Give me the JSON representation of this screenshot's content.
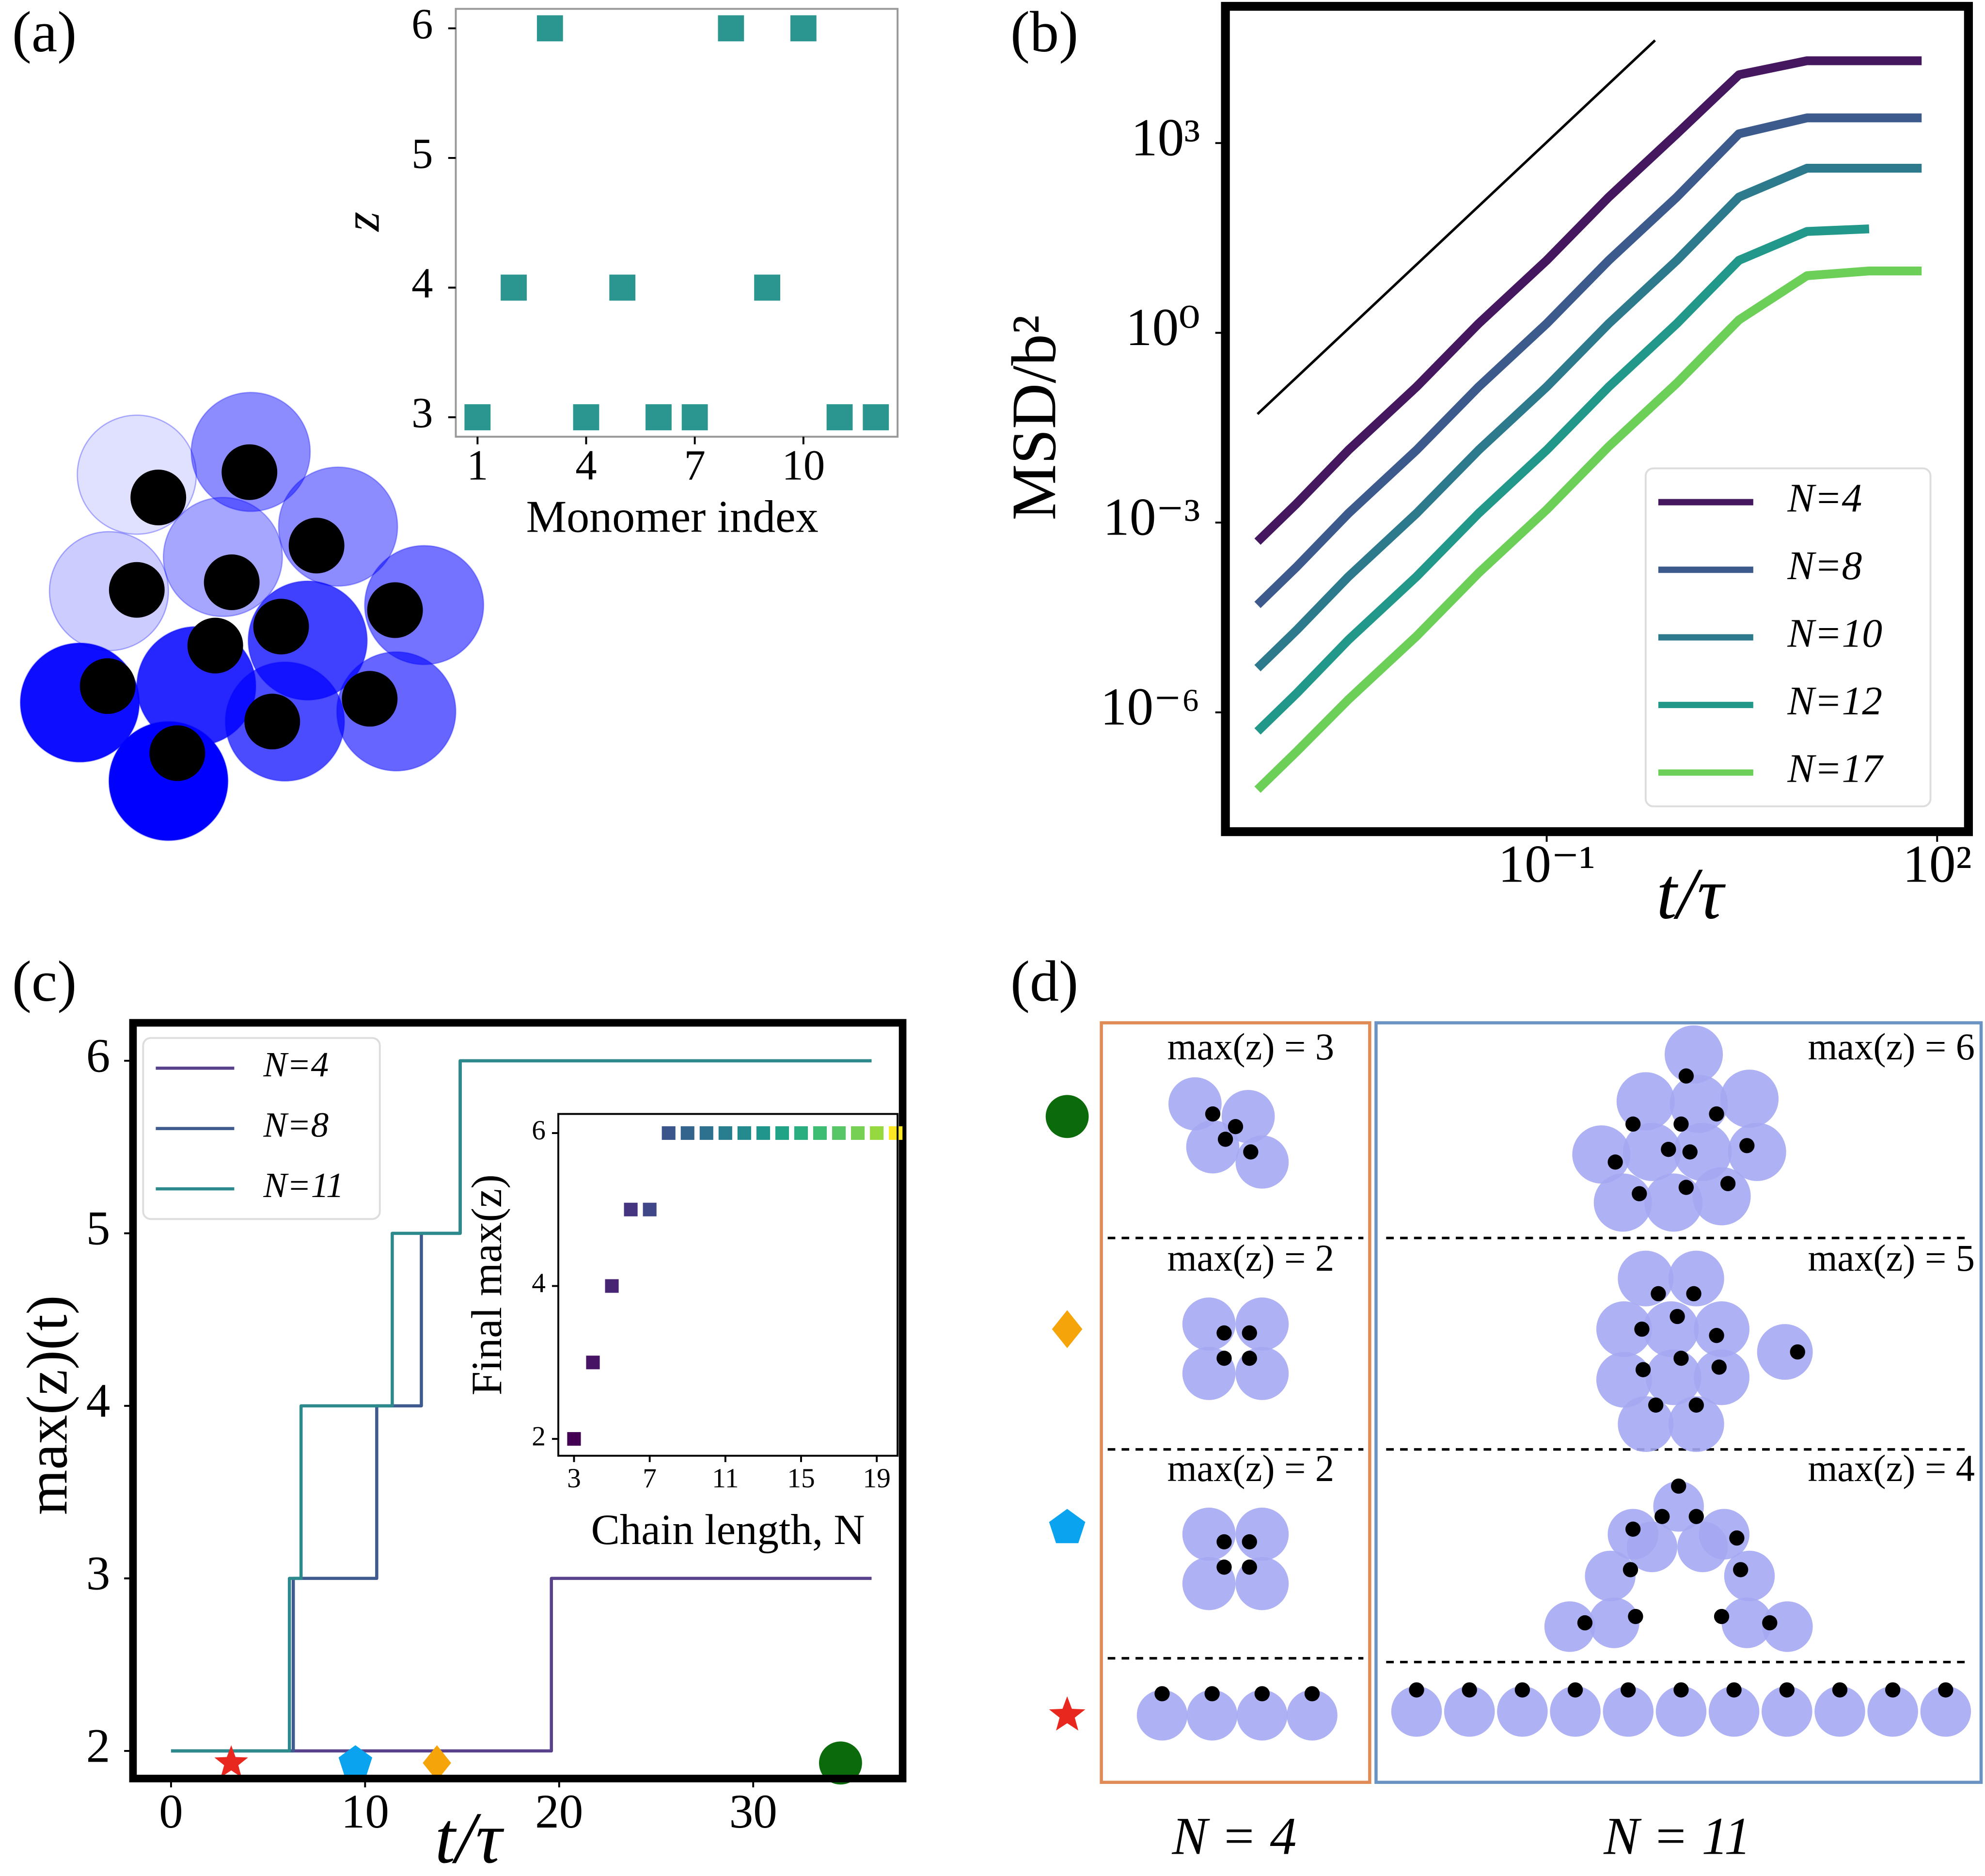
{
  "panel_labels": [
    "(a)",
    "(b)",
    "(c)",
    "(d)"
  ],
  "chart_data": [
    {
      "type": "scatter",
      "marker": "square",
      "xlabel": "Monomer index",
      "ylabel": "z",
      "color": "#2b958f",
      "x": [
        1,
        2,
        3,
        4,
        5,
        6,
        7,
        8,
        9,
        10,
        11,
        12
      ],
      "values": [
        3,
        4,
        6,
        3,
        4,
        3,
        3,
        6,
        4,
        6,
        3,
        3
      ],
      "xlim": [
        0.4,
        12.6
      ],
      "ylim": [
        2.85,
        6.15
      ],
      "xticks": [
        1,
        4,
        7,
        10
      ],
      "yticks": [
        3,
        4,
        5,
        6
      ]
    },
    {
      "type": "line",
      "xlabel": "t/τ",
      "ylabel": "MSD/b²",
      "log_x": true,
      "log_y": true,
      "legend": "lower right",
      "x": [
        0.0006,
        0.0012,
        0.003,
        0.01,
        0.03,
        0.1,
        0.3,
        1,
        3,
        10,
        30,
        76
      ],
      "series": [
        {
          "name": "N=4",
          "color": "#45175f",
          "values": [
            0.0005,
            0.002,
            0.014,
            0.14,
            1.4,
            14,
            140,
            1400,
            12000,
            20000,
            20000,
            20000
          ]
        },
        {
          "name": "N=8",
          "color": "#3c5a8c",
          "values": [
            5e-05,
            0.0002,
            0.0014,
            0.014,
            0.14,
            1.4,
            14,
            140,
            1400,
            2500,
            2500,
            2500
          ]
        },
        {
          "name": "N=10",
          "color": "#2c7a8c",
          "values": [
            5e-06,
            2e-05,
            0.00014,
            0.0014,
            0.014,
            0.14,
            1.4,
            14,
            140,
            400,
            400,
            400
          ]
        },
        {
          "name": "N=12",
          "color": "#22988a",
          "values": [
            5e-07,
            2e-06,
            1.4e-05,
            0.00014,
            0.0014,
            0.014,
            0.14,
            1.4,
            14,
            40,
            44,
            null
          ]
        },
        {
          "name": "N=17",
          "color": "#6ccf58",
          "values": [
            6e-08,
            2.4e-07,
            1.6e-06,
            1.6e-05,
            0.00016,
            0.0016,
            0.016,
            0.16,
            1.6,
            8,
            9.5,
            9.5
          ]
        }
      ],
      "reference_line": {
        "color": "#000000",
        "x": [
          0.0006,
          0.68
        ],
        "values": [
          0.052,
          42000
        ]
      },
      "xlim": [
        0.00034,
        174
      ],
      "ylim": [
        1.3e-08,
        145000
      ],
      "xticks": [
        {
          "value": 0.1,
          "label": "10⁻¹"
        },
        {
          "value": 100,
          "label": "10²"
        }
      ],
      "yticks": [
        {
          "value": 1e-06,
          "label": "10⁻⁶"
        },
        {
          "value": 0.001,
          "label": "10⁻³"
        },
        {
          "value": 1,
          "label": "10⁰"
        },
        {
          "value": 1000,
          "label": "10³"
        }
      ]
    },
    {
      "type": "line",
      "xlabel": "t/τ",
      "ylabel": "max(z)(t)",
      "legend": "upper left",
      "series": [
        {
          "name": "N=4",
          "color": "#58428c",
          "x": [
            0,
            19.6,
            19.6,
            36.1
          ],
          "values": [
            2,
            2,
            3,
            3
          ]
        },
        {
          "name": "N=8",
          "color": "#3e5a8e",
          "x": [
            0,
            6.3,
            6.3,
            10.6,
            10.6,
            12.9,
            12.9,
            14.9,
            14.9,
            36.1
          ],
          "values": [
            2,
            2,
            3,
            3,
            4,
            4,
            5,
            5,
            6,
            6
          ]
        },
        {
          "name": "N=11",
          "color": "#2c8a8c",
          "x": [
            0,
            6.1,
            6.1,
            6.7,
            6.7,
            11.4,
            11.4,
            14.9,
            14.9,
            36.1
          ],
          "values": [
            2,
            2,
            3,
            3,
            4,
            4,
            5,
            5,
            6,
            6
          ]
        }
      ],
      "markers": [
        {
          "shape": "star",
          "color": "#e8281e",
          "x": 3.1,
          "y": 1.93
        },
        {
          "shape": "pentagon",
          "color": "#0aa3f0",
          "x": 9.5,
          "y": 1.93
        },
        {
          "shape": "diamond",
          "color": "#f5a40a",
          "x": 13.7,
          "y": 1.93
        },
        {
          "shape": "circle",
          "color": "#0b6b0b",
          "x": 34.5,
          "y": 1.93
        }
      ],
      "xlim": [
        -1.96,
        37.7
      ],
      "ylim": [
        1.84,
        6.22
      ],
      "xticks": [
        0,
        10,
        20,
        30
      ],
      "yticks": [
        2,
        3,
        4,
        5,
        6
      ]
    },
    {
      "type": "scatter",
      "marker": "square",
      "xlabel": "Chain length, N",
      "ylabel": "Final max(z)",
      "x": [
        3,
        4,
        5,
        6,
        7,
        8,
        9,
        10,
        11,
        12,
        13,
        14,
        15,
        16,
        17,
        18,
        19,
        20
      ],
      "values": [
        2,
        3,
        4,
        5,
        5,
        6,
        6,
        6,
        6,
        6,
        6,
        6,
        6,
        6,
        6,
        6,
        6,
        6
      ],
      "colors": [
        "#440154",
        "#471365",
        "#482475",
        "#453581",
        "#3f4788",
        "#39558c",
        "#32648e",
        "#2d718e",
        "#287d8e",
        "#238a8d",
        "#1f968b",
        "#20a386",
        "#29af7f",
        "#3dbc74",
        "#56c667",
        "#75d054",
        "#95d840",
        "#fde725"
      ],
      "xlim": [
        2.17,
        20.1
      ],
      "ylim": [
        1.78,
        6.25
      ],
      "xticks": [
        3,
        7,
        11,
        15,
        19
      ],
      "yticks": [
        2,
        4,
        6
      ]
    }
  ],
  "panel_d": {
    "columns": [
      "N = 4",
      "N = 11"
    ],
    "rows": [
      [
        "max(z) = 3",
        "max(z) = 6"
      ],
      [
        "max(z) = 2",
        "max(z) = 5"
      ],
      [
        "max(z) = 2",
        "max(z) = 4"
      ]
    ]
  }
}
